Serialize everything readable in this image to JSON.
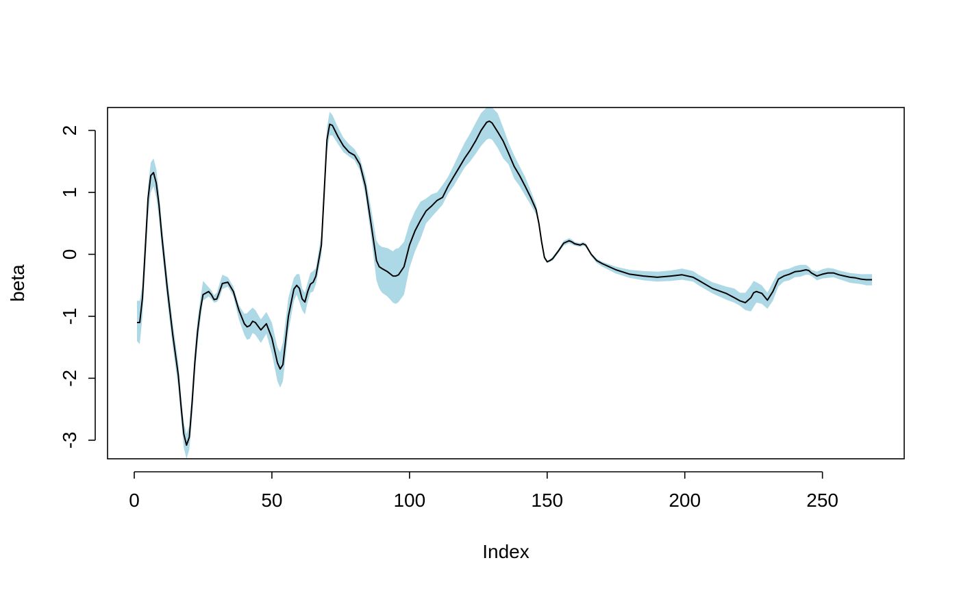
{
  "chart_data": {
    "type": "area",
    "title": "",
    "xlabel": "Index",
    "ylabel": "beta",
    "xlim": [
      -9.7,
      279.7
    ],
    "ylim": [
      -3.3,
      2.37
    ],
    "xticks": [
      0,
      50,
      100,
      150,
      200,
      250
    ],
    "xtick_labels": [
      "0",
      "50",
      "100",
      "150",
      "200",
      "250"
    ],
    "yticks": [
      -3,
      -2,
      -1,
      0,
      1,
      2
    ],
    "ytick_labels": [
      "-3",
      "-2",
      "-1",
      "0",
      "1",
      "2"
    ],
    "grid": false,
    "colors": {
      "band": "#ADD8E6",
      "line": "#000000",
      "frame": "#000000"
    },
    "x": [
      1,
      2,
      3,
      4,
      5,
      6,
      7,
      8,
      9,
      10,
      12,
      14,
      16,
      17,
      18,
      19,
      20,
      21,
      22,
      23,
      24,
      25,
      27,
      28,
      29,
      30,
      31,
      32,
      34,
      36,
      38,
      40,
      41,
      42,
      43,
      44,
      46,
      48,
      50,
      52,
      53,
      54,
      56,
      58,
      59,
      60,
      61,
      62,
      63,
      64,
      65,
      66,
      68,
      70,
      71,
      72,
      74,
      76,
      78,
      80,
      82,
      84,
      86,
      88,
      89,
      90,
      92,
      94,
      95,
      96,
      98,
      100,
      102,
      104,
      106,
      108,
      110,
      112,
      114,
      116,
      118,
      120,
      122,
      124,
      126,
      128,
      129,
      130,
      132,
      134,
      136,
      138,
      140,
      142,
      144,
      146,
      147,
      148,
      149,
      150,
      151,
      152,
      154,
      156,
      158,
      159,
      160,
      162,
      163,
      164,
      166,
      168,
      170,
      175,
      180,
      185,
      190,
      195,
      199,
      203,
      205,
      210,
      215,
      218,
      220,
      222,
      224,
      225,
      226,
      228,
      230,
      232,
      234,
      236,
      238,
      240,
      242,
      244,
      245,
      246,
      248,
      250,
      252,
      254,
      256,
      258,
      260,
      262,
      264,
      266,
      268
    ],
    "beta": [
      -1.1,
      -1.1,
      -0.7,
      0.1,
      0.9,
      1.27,
      1.32,
      1.15,
      0.8,
      0.3,
      -0.55,
      -1.3,
      -1.95,
      -2.45,
      -2.9,
      -3.08,
      -2.95,
      -2.4,
      -1.75,
      -1.25,
      -0.9,
      -0.65,
      -0.6,
      -0.65,
      -0.73,
      -0.72,
      -0.6,
      -0.47,
      -0.45,
      -0.6,
      -0.9,
      -1.12,
      -1.17,
      -1.15,
      -1.08,
      -1.1,
      -1.22,
      -1.12,
      -1.35,
      -1.75,
      -1.85,
      -1.78,
      -1.0,
      -0.56,
      -0.5,
      -0.55,
      -0.72,
      -0.77,
      -0.6,
      -0.48,
      -0.45,
      -0.35,
      0.15,
      1.85,
      2.1,
      2.08,
      1.9,
      1.75,
      1.65,
      1.6,
      1.45,
      1.1,
      0.5,
      -0.1,
      -0.2,
      -0.23,
      -0.28,
      -0.35,
      -0.35,
      -0.33,
      -0.2,
      0.15,
      0.38,
      0.55,
      0.7,
      0.78,
      0.87,
      0.92,
      1.1,
      1.25,
      1.4,
      1.55,
      1.68,
      1.83,
      2.0,
      2.13,
      2.15,
      2.12,
      1.98,
      1.83,
      1.63,
      1.42,
      1.27,
      1.1,
      0.92,
      0.72,
      0.5,
      0.2,
      -0.05,
      -0.12,
      -0.1,
      -0.07,
      0.05,
      0.18,
      0.22,
      0.2,
      0.17,
      0.15,
      0.17,
      0.15,
      0.0,
      -0.1,
      -0.15,
      -0.25,
      -0.32,
      -0.35,
      -0.37,
      -0.35,
      -0.33,
      -0.37,
      -0.42,
      -0.55,
      -0.63,
      -0.7,
      -0.75,
      -0.78,
      -0.7,
      -0.62,
      -0.6,
      -0.63,
      -0.74,
      -0.6,
      -0.4,
      -0.35,
      -0.32,
      -0.28,
      -0.27,
      -0.25,
      -0.26,
      -0.3,
      -0.35,
      -0.32,
      -0.3,
      -0.3,
      -0.33,
      -0.35,
      -0.37,
      -0.38,
      -0.4,
      -0.41,
      -0.41
    ],
    "band_upper": [
      -0.75,
      -0.75,
      -0.5,
      0.3,
      1.1,
      1.48,
      1.55,
      1.38,
      1.0,
      0.5,
      -0.35,
      -1.1,
      -1.75,
      -2.28,
      -2.72,
      -2.9,
      -2.77,
      -2.2,
      -1.55,
      -1.05,
      -0.72,
      -0.43,
      -0.53,
      -0.58,
      -0.66,
      -0.62,
      -0.47,
      -0.33,
      -0.37,
      -0.52,
      -0.82,
      -0.96,
      -0.95,
      -0.9,
      -0.86,
      -0.9,
      -1.05,
      -0.93,
      -1.1,
      -1.5,
      -1.58,
      -1.42,
      -0.7,
      -0.38,
      -0.32,
      -0.32,
      -0.55,
      -0.62,
      -0.45,
      -0.3,
      -0.27,
      -0.22,
      0.33,
      2.05,
      2.3,
      2.25,
      2.05,
      1.88,
      1.78,
      1.7,
      1.55,
      1.25,
      0.75,
      0.22,
      0.15,
      0.12,
      0.1,
      0.05,
      0.09,
      0.1,
      0.2,
      0.5,
      0.7,
      0.85,
      0.9,
      0.97,
      1.0,
      1.12,
      1.25,
      1.43,
      1.62,
      1.8,
      1.95,
      2.12,
      2.28,
      2.37,
      2.37,
      2.37,
      2.28,
      2.05,
      1.8,
      1.6,
      1.42,
      1.25,
      1.03,
      0.8,
      0.55,
      0.26,
      -0.02,
      -0.1,
      -0.08,
      -0.04,
      0.08,
      0.22,
      0.26,
      0.24,
      0.2,
      0.18,
      0.2,
      0.18,
      0.02,
      -0.07,
      -0.12,
      -0.2,
      -0.25,
      -0.27,
      -0.28,
      -0.26,
      -0.23,
      -0.27,
      -0.33,
      -0.45,
      -0.52,
      -0.55,
      -0.62,
      -0.62,
      -0.5,
      -0.43,
      -0.45,
      -0.5,
      -0.62,
      -0.45,
      -0.28,
      -0.25,
      -0.23,
      -0.19,
      -0.17,
      -0.17,
      -0.2,
      -0.25,
      -0.28,
      -0.24,
      -0.22,
      -0.23,
      -0.26,
      -0.28,
      -0.3,
      -0.31,
      -0.32,
      -0.32,
      -0.32
    ],
    "band_lower": [
      -1.4,
      -1.45,
      -1.0,
      -0.2,
      0.6,
      1.0,
      1.1,
      0.92,
      0.58,
      0.1,
      -0.75,
      -1.5,
      -2.15,
      -2.65,
      -3.12,
      -3.3,
      -3.15,
      -2.65,
      -1.95,
      -1.45,
      -1.08,
      -0.75,
      -0.68,
      -0.72,
      -0.78,
      -0.77,
      -0.7,
      -0.56,
      -0.52,
      -0.68,
      -1.05,
      -1.3,
      -1.38,
      -1.36,
      -1.27,
      -1.3,
      -1.43,
      -1.28,
      -1.6,
      -2.05,
      -2.15,
      -2.05,
      -1.25,
      -0.75,
      -0.65,
      -0.77,
      -0.9,
      -0.97,
      -0.77,
      -0.62,
      -0.6,
      -0.48,
      -0.02,
      1.65,
      1.92,
      1.92,
      1.78,
      1.65,
      1.58,
      1.52,
      1.35,
      0.95,
      0.3,
      -0.42,
      -0.55,
      -0.62,
      -0.68,
      -0.78,
      -0.8,
      -0.77,
      -0.65,
      -0.22,
      0.05,
      0.25,
      0.5,
      0.6,
      0.7,
      0.8,
      0.98,
      1.1,
      1.25,
      1.4,
      1.5,
      1.62,
      1.75,
      1.85,
      1.87,
      1.85,
      1.72,
      1.55,
      1.45,
      1.22,
      1.1,
      0.95,
      0.8,
      0.64,
      0.45,
      0.15,
      -0.08,
      -0.14,
      -0.12,
      -0.1,
      0.02,
      0.14,
      0.18,
      0.16,
      0.14,
      0.12,
      0.14,
      0.12,
      -0.03,
      -0.14,
      -0.2,
      -0.31,
      -0.38,
      -0.42,
      -0.44,
      -0.43,
      -0.41,
      -0.44,
      -0.5,
      -0.63,
      -0.73,
      -0.78,
      -0.83,
      -0.9,
      -0.92,
      -0.85,
      -0.78,
      -0.8,
      -0.88,
      -0.75,
      -0.52,
      -0.44,
      -0.42,
      -0.37,
      -0.36,
      -0.33,
      -0.33,
      -0.35,
      -0.42,
      -0.39,
      -0.38,
      -0.37,
      -0.4,
      -0.43,
      -0.46,
      -0.47,
      -0.48,
      -0.5,
      -0.5
    ]
  }
}
